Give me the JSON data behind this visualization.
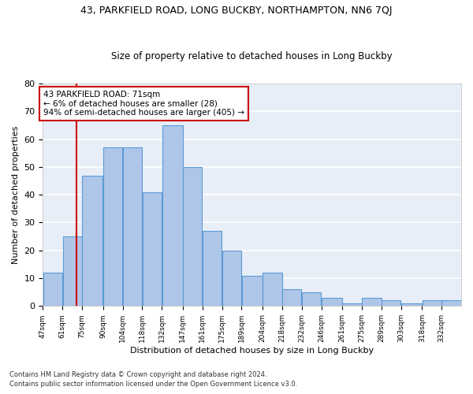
{
  "title1": "43, PARKFIELD ROAD, LONG BUCKBY, NORTHAMPTON, NN6 7QJ",
  "title2": "Size of property relative to detached houses in Long Buckby",
  "xlabel": "Distribution of detached houses by size in Long Buckby",
  "ylabel": "Number of detached properties",
  "footnote1": "Contains HM Land Registry data © Crown copyright and database right 2024.",
  "footnote2": "Contains public sector information licensed under the Open Government Licence v3.0.",
  "categories": [
    "47sqm",
    "61sqm",
    "75sqm",
    "90sqm",
    "104sqm",
    "118sqm",
    "132sqm",
    "147sqm",
    "161sqm",
    "175sqm",
    "189sqm",
    "204sqm",
    "218sqm",
    "232sqm",
    "246sqm",
    "261sqm",
    "275sqm",
    "289sqm",
    "303sqm",
    "318sqm",
    "332sqm"
  ],
  "values": [
    12,
    25,
    47,
    57,
    57,
    41,
    65,
    50,
    27,
    20,
    11,
    12,
    6,
    5,
    3,
    1,
    3,
    2,
    1,
    2,
    2
  ],
  "bar_color": "#aec6e8",
  "bar_edge_color": "#5b9bd5",
  "bg_color": "#e8eef8",
  "grid_color": "#ffffff",
  "property_line_x": 71,
  "property_line_color": "#cc0000",
  "annotation_line1": "43 PARKFIELD ROAD: 71sqm",
  "annotation_line2": "← 6% of detached houses are smaller (28)",
  "annotation_line3": "94% of semi-detached houses are larger (405) →",
  "annotation_box_color": "#cc0000",
  "ylim": [
    0,
    80
  ],
  "bin_edges": [
    47,
    61,
    75,
    90,
    104,
    118,
    132,
    147,
    161,
    175,
    189,
    204,
    218,
    232,
    246,
    261,
    275,
    289,
    303,
    318,
    332,
    346
  ]
}
